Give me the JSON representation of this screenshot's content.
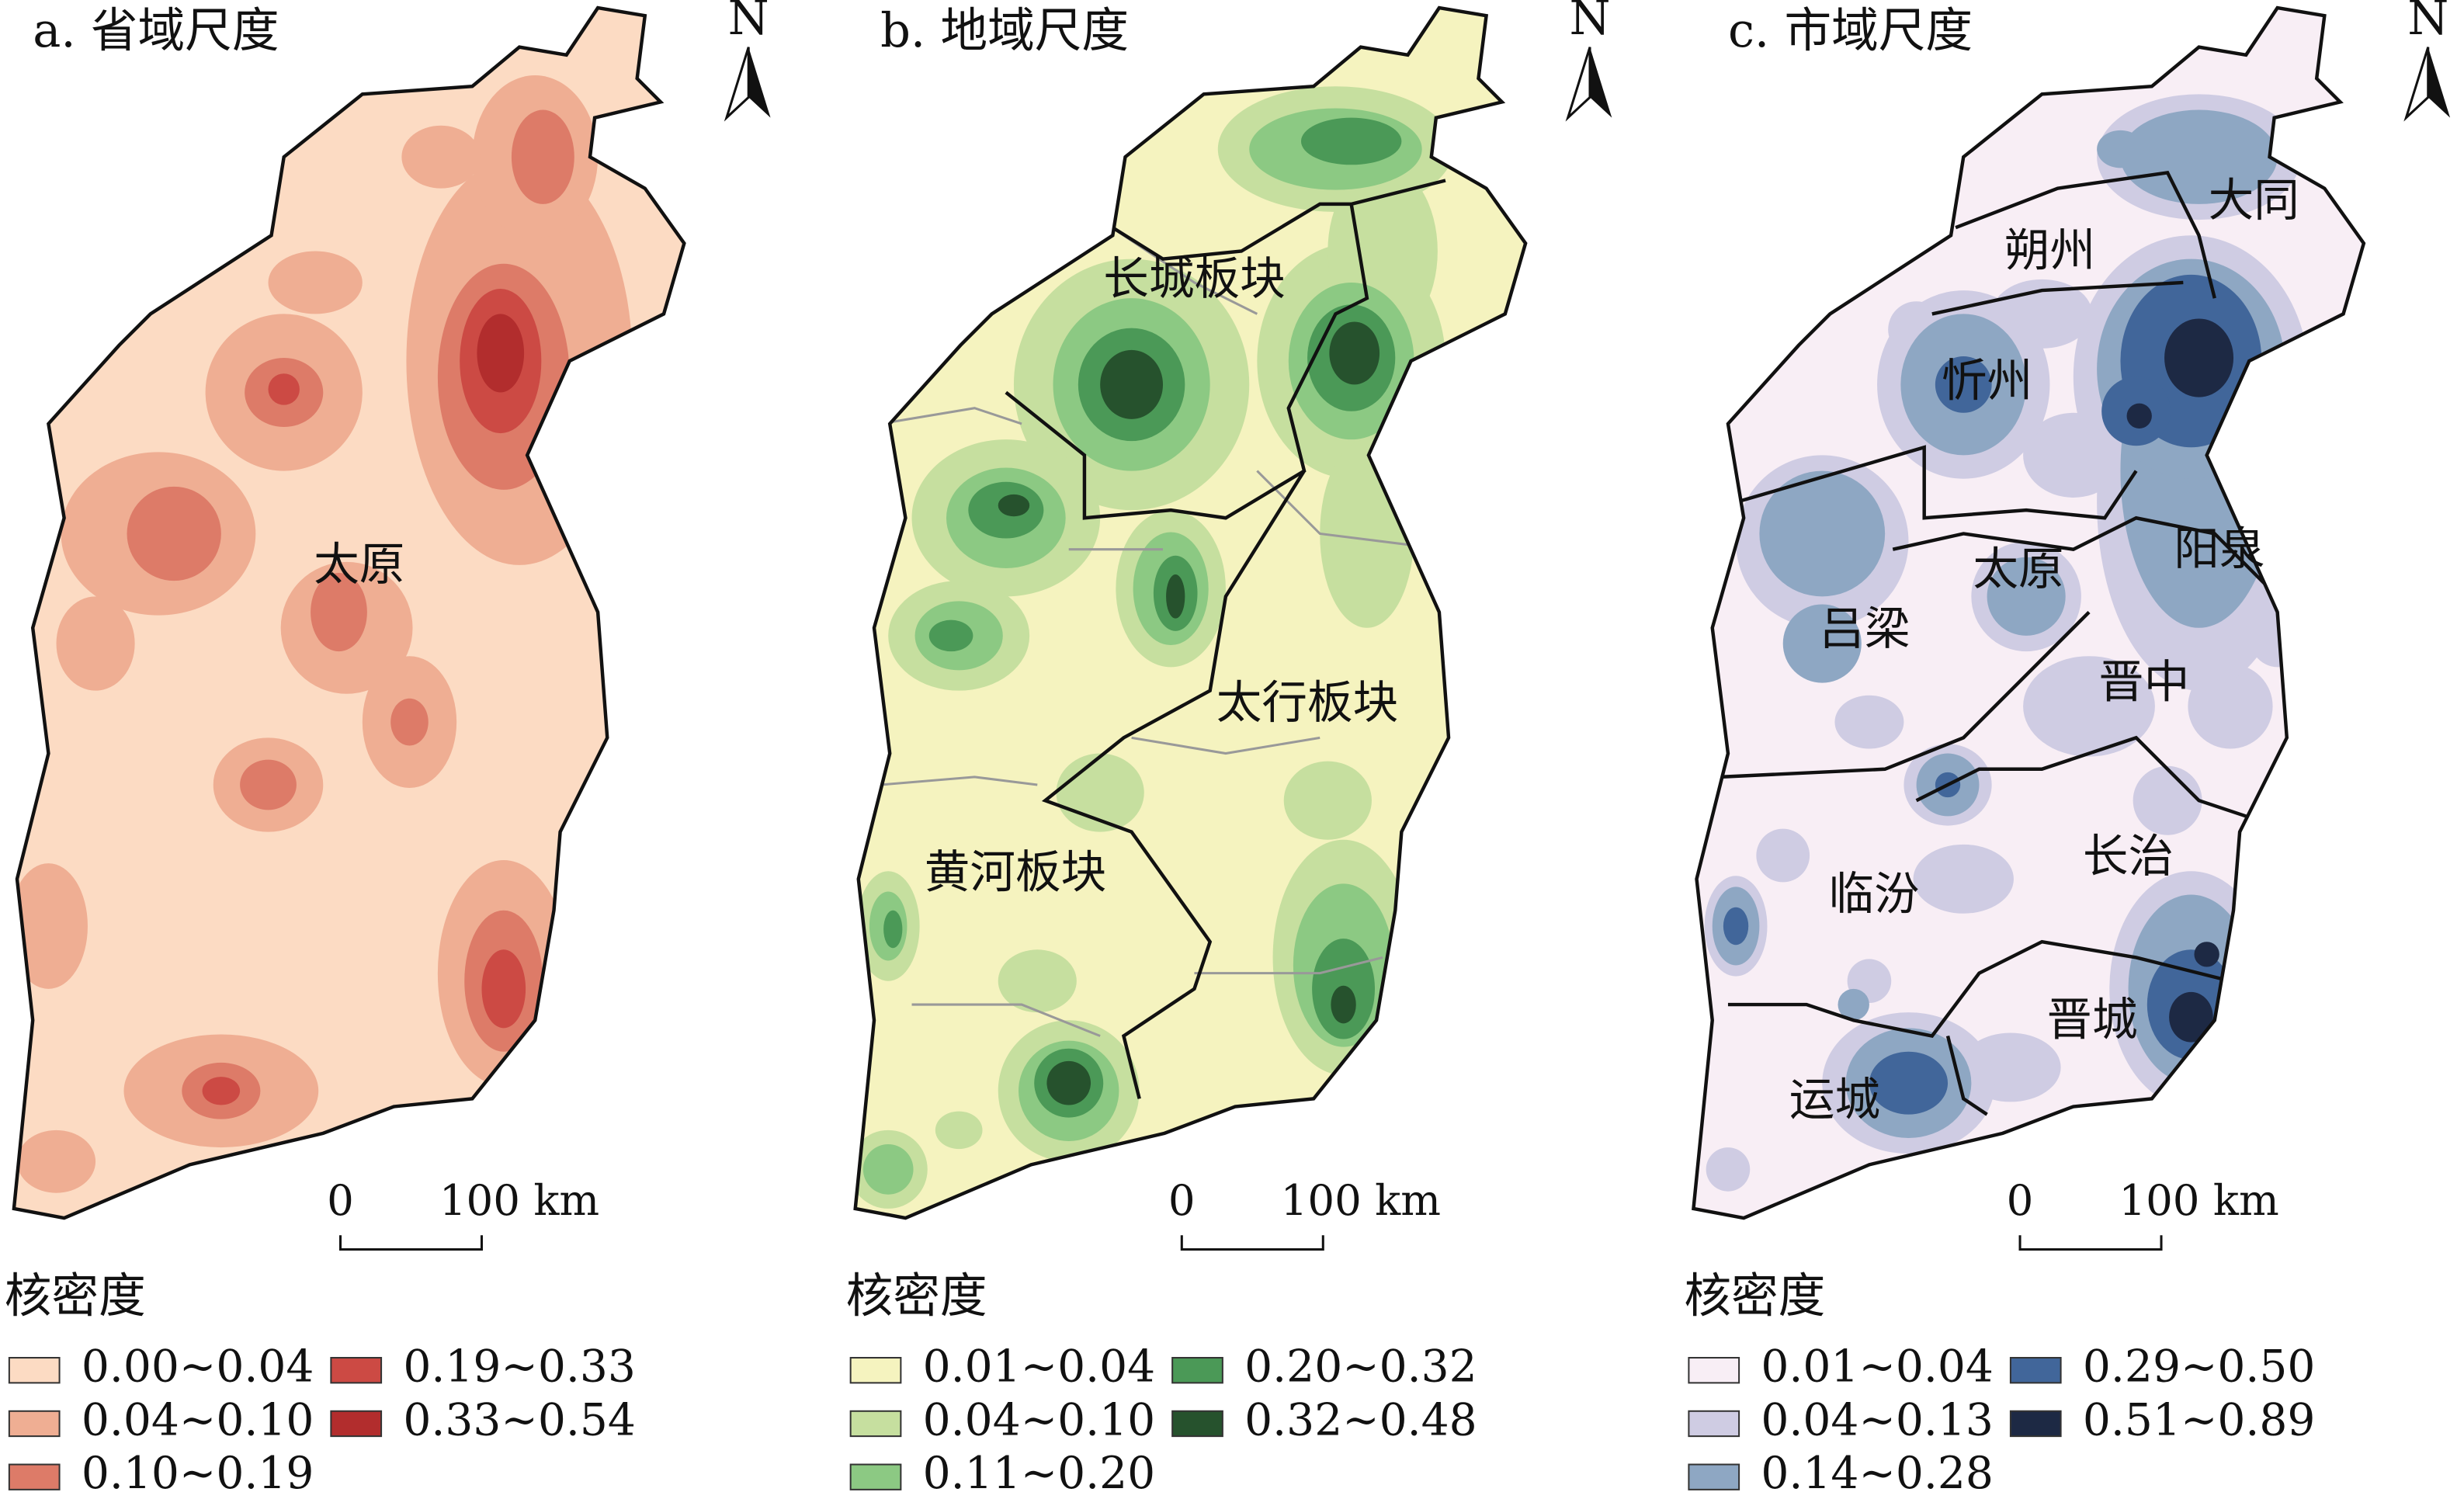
{
  "panels": [
    {
      "title": "a. 省域尺度",
      "north": "N",
      "scale": {
        "start": "0",
        "end": "100 km"
      },
      "places": [
        "太原"
      ],
      "legend": {
        "title": "核密度",
        "items": [
          {
            "label": "0.00~0.04",
            "color": "#fcdbc3"
          },
          {
            "label": "0.04~0.10",
            "color": "#efae93"
          },
          {
            "label": "0.10~0.19",
            "color": "#dd7b68"
          },
          {
            "label": "0.19~0.33",
            "color": "#cc4a44"
          },
          {
            "label": "0.33~0.54",
            "color": "#b22d2d"
          }
        ]
      }
    },
    {
      "title": "b. 地域尺度",
      "north": "N",
      "scale": {
        "start": "0",
        "end": "100 km"
      },
      "places": [
        "长城板块",
        "太行板块",
        "黄河板块"
      ],
      "legend": {
        "title": "核密度",
        "items": [
          {
            "label": "0.01~0.04",
            "color": "#f5f3bf"
          },
          {
            "label": "0.04~0.10",
            "color": "#c6df9f"
          },
          {
            "label": "0.11~0.20",
            "color": "#8cc983"
          },
          {
            "label": "0.20~0.32",
            "color": "#4b9957"
          },
          {
            "label": "0.32~0.48",
            "color": "#26522d"
          }
        ]
      }
    },
    {
      "title": "c. 市域尺度",
      "north": "N",
      "scale": {
        "start": "0",
        "end": "100 km"
      },
      "places": [
        "大同",
        "朔州",
        "忻州",
        "太原",
        "阳泉",
        "吕梁",
        "晋中",
        "临汾",
        "长治",
        "晋城",
        "运城"
      ],
      "legend": {
        "title": "核密度",
        "items": [
          {
            "label": "0.01~0.04",
            "color": "#f8eef5"
          },
          {
            "label": "0.04~0.13",
            "color": "#cfcce3"
          },
          {
            "label": "0.14~0.28",
            "color": "#8ea7c3"
          },
          {
            "label": "0.29~0.50",
            "color": "#41669a"
          },
          {
            "label": "0.51~0.89",
            "color": "#1d2944"
          }
        ]
      }
    }
  ]
}
